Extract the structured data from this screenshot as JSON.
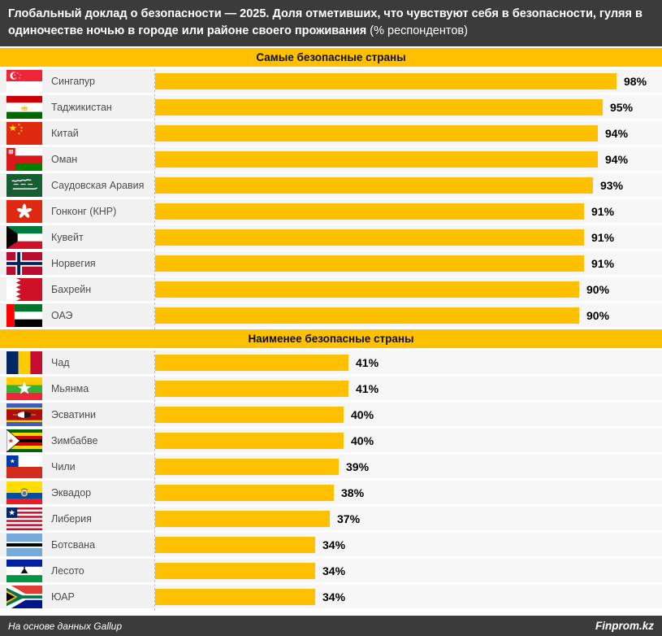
{
  "title": {
    "bold": "Глобальный доклад о безопасности — 2025. Доля отметивших, что чувствуют себя в безопасности, гуляя в одиночестве ночью в городе или районе своего проживания ",
    "normal": "(% респондентов)"
  },
  "colors": {
    "accent": "#FFC000",
    "header_bg": "#3B3B3B",
    "bar": "#FFC000",
    "row_label_bg": "#F1F1F1",
    "row_track_bg": "#F6F6F6"
  },
  "chart_data": {
    "type": "bar",
    "orientation": "horizontal",
    "unit": "%",
    "xlim": [
      0,
      100
    ],
    "grid": false,
    "legend": false,
    "sections": [
      {
        "title": "Самые безопасные страны",
        "rows": [
          {
            "country": "Сингапур",
            "flag": "singapore-flag",
            "code": "sg",
            "value": 98
          },
          {
            "country": "Таджикистан",
            "flag": "tajikistan-flag",
            "code": "tj",
            "value": 95
          },
          {
            "country": "Китай",
            "flag": "china-flag",
            "code": "cn",
            "value": 94
          },
          {
            "country": "Оман",
            "flag": "oman-flag",
            "code": "om",
            "value": 94
          },
          {
            "country": "Саудовская Аравия",
            "flag": "saudi-arabia-flag",
            "code": "sa",
            "value": 93
          },
          {
            "country": "Гонконг (КНР)",
            "flag": "hong-kong-flag",
            "code": "hk",
            "value": 91
          },
          {
            "country": "Кувейт",
            "flag": "kuwait-flag",
            "code": "kw",
            "value": 91
          },
          {
            "country": "Норвегия",
            "flag": "norway-flag",
            "code": "no",
            "value": 91
          },
          {
            "country": "Бахрейн",
            "flag": "bahrain-flag",
            "code": "bh",
            "value": 90
          },
          {
            "country": "ОАЭ",
            "flag": "uae-flag",
            "code": "ae",
            "value": 90
          }
        ]
      },
      {
        "title": "Наименее безопасные страны",
        "rows": [
          {
            "country": "Чад",
            "flag": "chad-flag",
            "code": "td",
            "value": 41
          },
          {
            "country": "Мьянма",
            "flag": "myanmar-flag",
            "code": "mm",
            "value": 41
          },
          {
            "country": "Эсватини",
            "flag": "eswatini-flag",
            "code": "sz",
            "value": 40
          },
          {
            "country": "Зимбабве",
            "flag": "zimbabwe-flag",
            "code": "zw",
            "value": 40
          },
          {
            "country": "Чили",
            "flag": "chile-flag",
            "code": "cl",
            "value": 39
          },
          {
            "country": "Эквадор",
            "flag": "ecuador-flag",
            "code": "ec",
            "value": 38
          },
          {
            "country": "Либерия",
            "flag": "liberia-flag",
            "code": "lr",
            "value": 37
          },
          {
            "country": "Ботсвана",
            "flag": "botswana-flag",
            "code": "bw",
            "value": 34
          },
          {
            "country": "Лесото",
            "flag": "lesotho-flag",
            "code": "ls",
            "value": 34
          },
          {
            "country": "ЮАР",
            "flag": "south-africa-flag",
            "code": "za",
            "value": 34
          }
        ]
      }
    ]
  },
  "footer": {
    "source": "На основе данных Gallup",
    "brand": "Finprom.kz"
  }
}
